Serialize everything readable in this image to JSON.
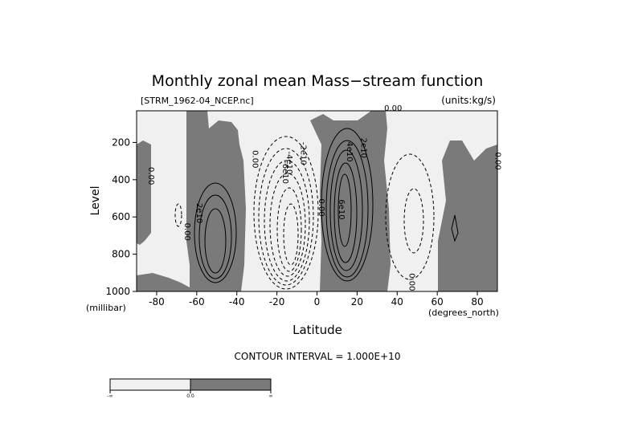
{
  "chart_data": {
    "type": "contour",
    "title": "Monthly zonal mean Mass−stream function",
    "file_label": "[STRM_1962-04_NCEP.nc]",
    "units_label": "(units:kg/s)",
    "xlabel": "Latitude",
    "x_unit": "(degrees_north)",
    "ylabel": "Level",
    "y_unit": "(millibar)",
    "xlim": [
      -90,
      90
    ],
    "ylim": [
      1000,
      30
    ],
    "y_inverted": true,
    "x_ticks": [
      -80,
      -60,
      -40,
      -20,
      0,
      20,
      40,
      60,
      80
    ],
    "y_ticks": [
      200,
      400,
      600,
      800,
      1000
    ],
    "contour_interval_text": "CONTOUR INTERVAL = 1.000E+10",
    "colorbar": {
      "labels": [
        "-∞",
        "0.0",
        "∞"
      ],
      "colors": [
        "#f0f0f0",
        "#7a7a7a"
      ]
    },
    "shading": {
      "negative": "#f0f0f0",
      "positive": "#7a7a7a"
    },
    "contour_labels": [
      {
        "text": "0.00",
        "lat": -84,
        "p": 380
      },
      {
        "text": "0.00",
        "lat": -66,
        "p": 680
      },
      {
        "text": "2e10",
        "lat": -60,
        "p": 580
      },
      {
        "text": "0.00",
        "lat": -32,
        "p": 290
      },
      {
        "text": "-2e10",
        "lat": -8,
        "p": 260
      },
      {
        "text": "-4e10",
        "lat": -15,
        "p": 310
      },
      {
        "text": "-6e10",
        "lat": -17,
        "p": 360
      },
      {
        "text": "0.00",
        "lat": 1,
        "p": 550
      },
      {
        "text": "2e10",
        "lat": 22,
        "p": 230
      },
      {
        "text": "4e10",
        "lat": 15,
        "p": 250
      },
      {
        "text": "6e10",
        "lat": 11,
        "p": 560
      },
      {
        "text": "0.00",
        "lat": 38,
        "p": 30
      },
      {
        "text": "0.00",
        "lat": 46,
        "p": 950
      },
      {
        "text": "0.00",
        "lat": 89,
        "p": 300
      }
    ]
  }
}
